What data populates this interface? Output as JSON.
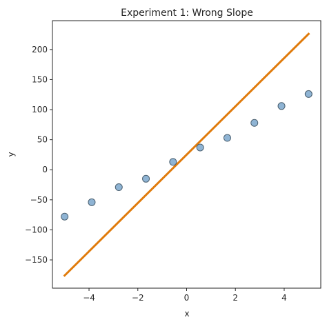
{
  "chart_data": {
    "type": "scatter",
    "title": "Experiment 1: Wrong Slope",
    "xlabel": "x",
    "ylabel": "y",
    "xlim": [
      -5.5,
      5.5
    ],
    "ylim": [
      -197,
      248
    ],
    "x_ticks": [
      -4,
      -2,
      0,
      2,
      4
    ],
    "x_tick_labels": [
      "−4",
      "−2",
      "0",
      "2",
      "4"
    ],
    "y_ticks": [
      -150,
      -100,
      -50,
      0,
      50,
      100,
      150,
      200
    ],
    "y_tick_labels": [
      "−150",
      "−100",
      "−50",
      "0",
      "50",
      "100",
      "150",
      "200"
    ],
    "grid": false,
    "series": [
      {
        "type": "scatter",
        "x": [
          -5.0,
          -3.889,
          -2.778,
          -1.667,
          -0.556,
          0.556,
          1.667,
          2.778,
          3.889,
          5.0
        ],
        "y": [
          -78,
          -54,
          -29,
          -15,
          13,
          37,
          53,
          78,
          106,
          126
        ],
        "color": "#7ba7cc",
        "edge_color": "#4a5f6f"
      },
      {
        "type": "line",
        "x": [
          -5.0,
          5.0
        ],
        "y": [
          -176,
          226
        ],
        "color": "#e07b0c"
      }
    ]
  }
}
